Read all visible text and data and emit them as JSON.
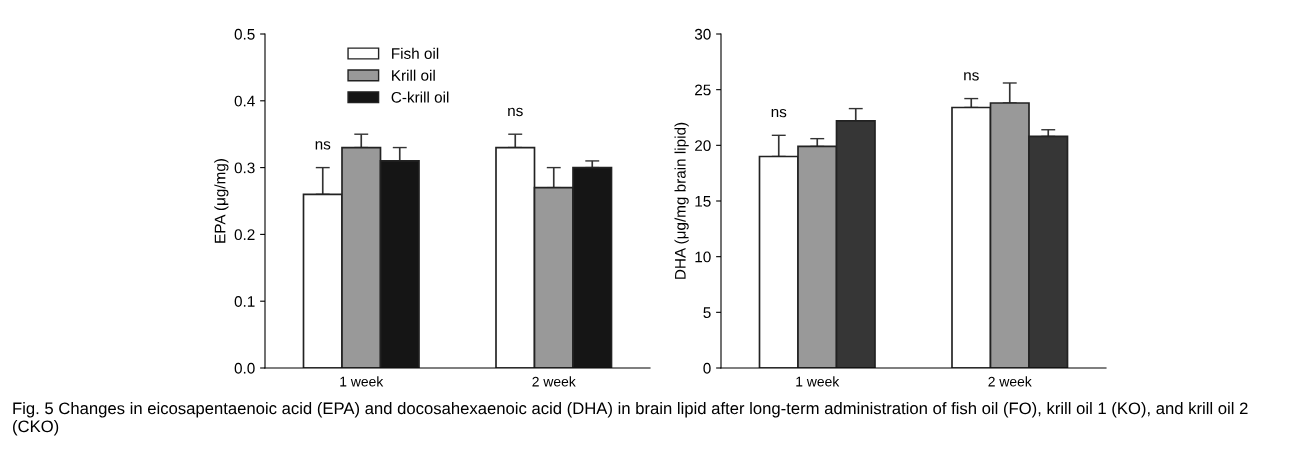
{
  "chart_data": [
    {
      "type": "bar",
      "ylabel": "EPA (μg/mg)",
      "categories": [
        "1 week",
        "2 week"
      ],
      "ylim": [
        0,
        0.5
      ],
      "yticks": [
        {
          "value": 0,
          "label": "0.0"
        },
        0.1,
        0.2,
        0.3,
        0.4,
        0.5
      ],
      "legend": "top left",
      "grid": false,
      "series": [
        {
          "name": "Fish oil",
          "color": "#ffffff",
          "values": [
            0.26,
            0.33
          ],
          "errors": [
            [
              0.26,
              0.3
            ],
            [
              0.33,
              0.35
            ]
          ]
        },
        {
          "name": "Krill oil",
          "color": "#999999",
          "values": [
            0.33,
            0.27
          ],
          "errors": [
            [
              0.33,
              0.35
            ],
            [
              0.27,
              0.3
            ]
          ]
        },
        {
          "name": "C-krill oil",
          "color": "#151515",
          "values": [
            0.31,
            0.3
          ],
          "errors": [
            [
              0.31,
              0.33
            ],
            [
              0.3,
              0.31
            ]
          ]
        }
      ],
      "annotations": [
        "ns",
        "ns",
        "Fig. 5 Changes in eicosapentaenoic acid (EPA) and docosahexaenoic acid (DHA) in brain lipid after long-term administration of fish oil (FO), krill oil 1 (KO), and krill oil 2 (CKO)"
      ]
    },
    {
      "type": "bar",
      "ylabel": "DHA (μg/mg brain lipid)",
      "categories": [
        "1 week",
        "2 week"
      ],
      "ylim": [
        0,
        30
      ],
      "yticks": [
        0,
        5,
        10,
        15,
        20,
        25,
        30
      ],
      "legend": false,
      "grid": false,
      "series": [
        {
          "color": "#ffffff",
          "values": [
            19.0,
            23.4
          ],
          "errors": [
            [
              19.0,
              20.9
            ],
            [
              23.4,
              24.2
            ]
          ]
        },
        {
          "color": "#999999",
          "values": [
            19.9,
            23.8
          ],
          "errors": [
            [
              19.9,
              20.6
            ],
            [
              23.8,
              25.6
            ]
          ]
        },
        {
          "color": "#363636",
          "values": [
            22.2,
            20.8
          ],
          "errors": [
            [
              22.2,
              23.3
            ],
            [
              20.8,
              21.4
            ]
          ]
        }
      ],
      "annotations": [
        "ns",
        "ns"
      ]
    }
  ]
}
